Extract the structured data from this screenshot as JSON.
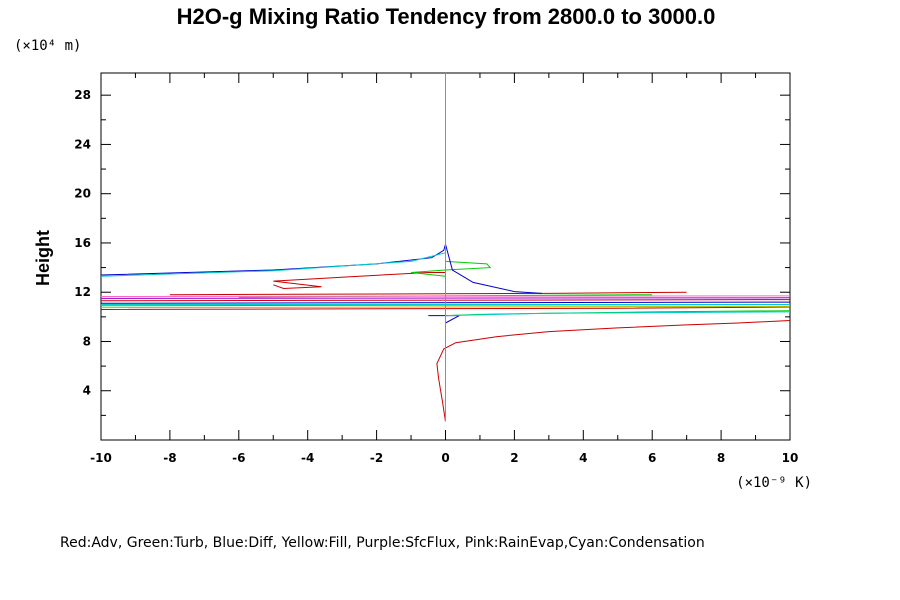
{
  "chart_data": {
    "type": "line",
    "title": "H2O-g Mixing Ratio Tendency from 2800.0 to 3000.0",
    "ylabel": "Height",
    "x_unit_label": "(×10⁻⁹ K)",
    "y_unit_label": "(×10⁴ m)",
    "xlim": [
      -10,
      10
    ],
    "ylim": [
      0,
      29.8
    ],
    "x_ticks": [
      -10,
      -8,
      -6,
      -4,
      -2,
      0,
      2,
      4,
      6,
      8,
      10
    ],
    "x_tick_labels": [
      "-10",
      "-8",
      "-6",
      "-4",
      "-2",
      "0",
      "2",
      "4",
      "6",
      "8",
      "10"
    ],
    "y_ticks": [
      4,
      8,
      12,
      16,
      20,
      24,
      28
    ],
    "y_tick_labels": [
      "4",
      "8",
      "12",
      "16",
      "20",
      "24",
      "28"
    ],
    "legend_text": "Red:Adv, Green:Turb, Blue:Diff, Yellow:Fill, Purple:SfcFlux, Pink:RainEvap,Cyan:Condensation",
    "series": [
      {
        "name": "Adv",
        "color": "#cc0000",
        "points": [
          [
            0,
            1.5
          ],
          [
            -0.08,
            3
          ],
          [
            -0.2,
            5
          ],
          [
            -0.25,
            6.2
          ],
          [
            -0.05,
            7.4
          ],
          [
            0.3,
            7.9
          ],
          [
            1.5,
            8.4
          ],
          [
            3,
            8.8
          ],
          [
            5,
            9.1
          ],
          [
            7,
            9.35
          ],
          [
            8.5,
            9.5
          ],
          [
            10,
            9.7
          ],
          [
            null,
            null
          ],
          [
            -10,
            10.6
          ],
          [
            5,
            10.7
          ],
          [
            10,
            10.8
          ],
          [
            null,
            null
          ],
          [
            -10,
            11.3
          ],
          [
            10,
            11.4
          ],
          [
            null,
            null
          ],
          [
            -8,
            11.8
          ],
          [
            3,
            11.9
          ],
          [
            7,
            12.0
          ],
          [
            null,
            null
          ],
          [
            -5,
            12.6
          ],
          [
            -4.7,
            12.3
          ],
          [
            -3.6,
            12.45
          ],
          [
            -5,
            12.9
          ],
          [
            -2.5,
            13.3
          ],
          [
            -0.5,
            13.6
          ],
          [
            0,
            13.6
          ]
        ]
      },
      {
        "name": "Turb",
        "color": "#00cc00",
        "points": [
          [
            0,
            10.1
          ],
          [
            1,
            10.2
          ],
          [
            3,
            10.3
          ],
          [
            6,
            10.4
          ],
          [
            10,
            10.5
          ],
          [
            null,
            null
          ],
          [
            -10,
            10.9
          ],
          [
            10,
            11.0
          ],
          [
            null,
            null
          ],
          [
            -6,
            11.6
          ],
          [
            6,
            11.8
          ],
          [
            null,
            null
          ],
          [
            0,
            13.3
          ],
          [
            -1,
            13.6
          ],
          [
            0,
            13.8
          ],
          [
            1.3,
            14.0
          ],
          [
            1.2,
            14.3
          ],
          [
            0,
            14.5
          ]
        ]
      },
      {
        "name": "Diff",
        "color": "#0000cc",
        "points": [
          [
            -10,
            13.4
          ],
          [
            -5,
            13.8
          ],
          [
            -2,
            14.3
          ],
          [
            -0.4,
            14.8
          ],
          [
            -0.05,
            15.4
          ],
          [
            0,
            15.9
          ],
          [
            null,
            null
          ],
          [
            0,
            15.9
          ],
          [
            0.2,
            13.8
          ],
          [
            0.8,
            12.8
          ],
          [
            2.0,
            12.05
          ],
          [
            2.8,
            11.9
          ],
          [
            null,
            null
          ],
          [
            -10,
            11.1
          ],
          [
            10,
            11.2
          ],
          [
            null,
            null
          ],
          [
            -0.5,
            10.1
          ],
          [
            0.4,
            10.1
          ],
          [
            0,
            9.5
          ]
        ]
      },
      {
        "name": "Fill",
        "color": "#bbbb00",
        "points": [
          [
            -10,
            10.75
          ],
          [
            10,
            10.85
          ]
        ]
      },
      {
        "name": "SfcFlux",
        "color": "#9900cc",
        "points": [
          [
            -10,
            11.5
          ],
          [
            10,
            11.55
          ]
        ]
      },
      {
        "name": "RainEvap",
        "color": "#ff66cc",
        "points": [
          [
            -10,
            11.65
          ],
          [
            10,
            11.7
          ]
        ]
      },
      {
        "name": "Condensation",
        "color": "#00cccc",
        "points": [
          [
            0,
            1.5
          ],
          [
            0,
            29.8
          ],
          [
            null,
            null
          ],
          [
            -10,
            13.3
          ],
          [
            -5,
            13.75
          ],
          [
            -1,
            14.5
          ],
          [
            0,
            15.2
          ],
          [
            null,
            null
          ],
          [
            -10,
            11.0
          ],
          [
            10,
            11.0
          ],
          [
            null,
            null
          ],
          [
            0,
            10.1
          ],
          [
            3,
            10.3
          ],
          [
            10,
            10.4
          ]
        ]
      }
    ]
  }
}
